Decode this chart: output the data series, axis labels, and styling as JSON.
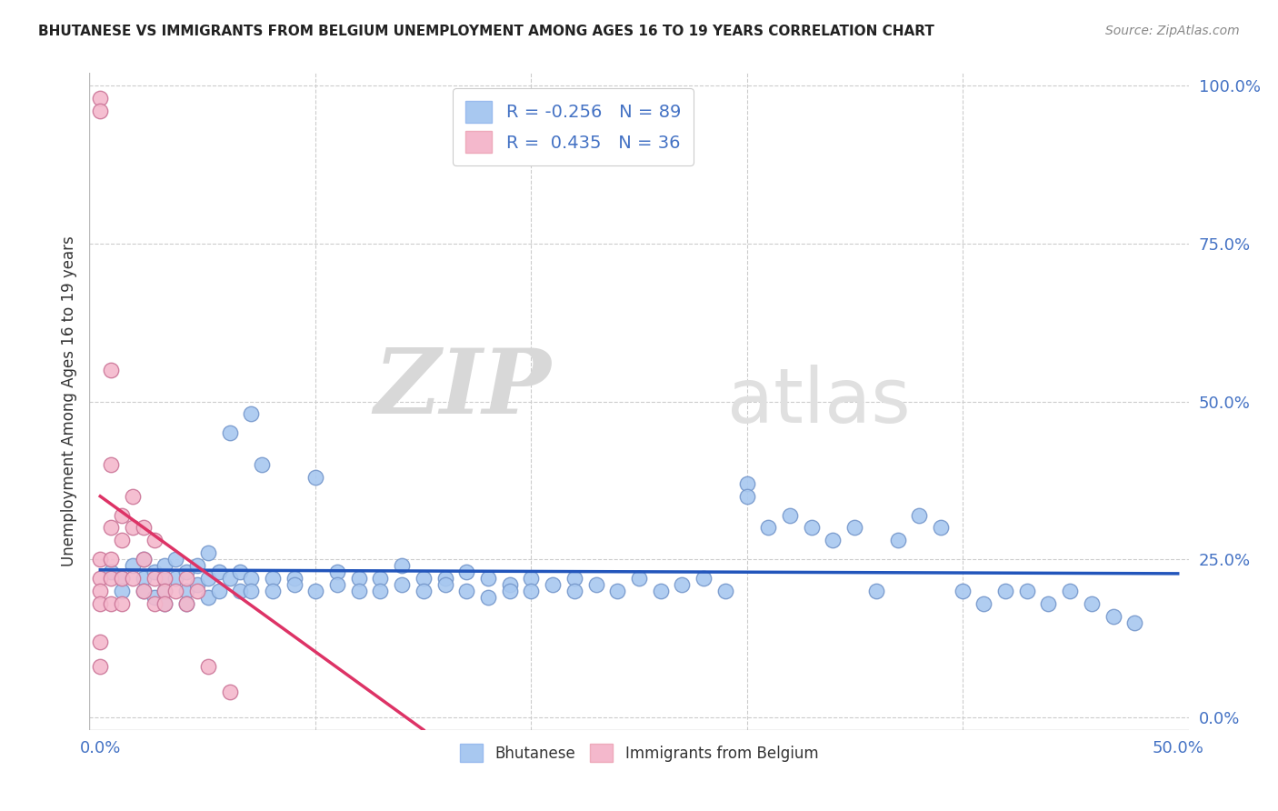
{
  "title": "BHUTANESE VS IMMIGRANTS FROM BELGIUM UNEMPLOYMENT AMONG AGES 16 TO 19 YEARS CORRELATION CHART",
  "source": "Source: ZipAtlas.com",
  "ylabel": "Unemployment Among Ages 16 to 19 years",
  "xlim": [
    -0.005,
    0.505
  ],
  "ylim": [
    -0.02,
    1.02
  ],
  "xticks": [
    0.0,
    0.5
  ],
  "yticks": [
    0.0,
    0.25,
    0.5,
    0.75,
    1.0
  ],
  "xticklabels": [
    "0.0%",
    "50.0%"
  ],
  "yticklabels": [
    "0.0%",
    "25.0%",
    "50.0%",
    "75.0%",
    "100.0%"
  ],
  "blue_color": "#a8c8f0",
  "pink_color": "#f4b8cc",
  "trendline_blue": "#2255bb",
  "trendline_pink": "#dd3366",
  "watermark_zip": "ZIP",
  "watermark_atlas": "atlas",
  "legend_R_blue": "-0.256",
  "legend_N_blue": "89",
  "legend_R_pink": "0.435",
  "legend_N_pink": "36",
  "blue_x": [
    0.005,
    0.01,
    0.01,
    0.015,
    0.02,
    0.02,
    0.02,
    0.025,
    0.025,
    0.03,
    0.03,
    0.03,
    0.03,
    0.035,
    0.035,
    0.04,
    0.04,
    0.04,
    0.045,
    0.045,
    0.05,
    0.05,
    0.05,
    0.055,
    0.055,
    0.06,
    0.06,
    0.065,
    0.065,
    0.07,
    0.07,
    0.07,
    0.075,
    0.08,
    0.08,
    0.09,
    0.09,
    0.1,
    0.1,
    0.11,
    0.11,
    0.12,
    0.12,
    0.13,
    0.13,
    0.14,
    0.14,
    0.15,
    0.15,
    0.16,
    0.16,
    0.17,
    0.17,
    0.18,
    0.18,
    0.19,
    0.19,
    0.2,
    0.2,
    0.21,
    0.22,
    0.22,
    0.23,
    0.24,
    0.25,
    0.26,
    0.27,
    0.28,
    0.29,
    0.3,
    0.3,
    0.31,
    0.32,
    0.33,
    0.34,
    0.35,
    0.36,
    0.37,
    0.38,
    0.39,
    0.4,
    0.41,
    0.42,
    0.43,
    0.44,
    0.45,
    0.46,
    0.47,
    0.48
  ],
  "blue_y": [
    0.23,
    0.22,
    0.2,
    0.24,
    0.22,
    0.2,
    0.25,
    0.23,
    0.19,
    0.22,
    0.24,
    0.2,
    0.18,
    0.25,
    0.22,
    0.23,
    0.2,
    0.18,
    0.24,
    0.21,
    0.22,
    0.19,
    0.26,
    0.23,
    0.2,
    0.45,
    0.22,
    0.23,
    0.2,
    0.48,
    0.22,
    0.2,
    0.4,
    0.22,
    0.2,
    0.22,
    0.21,
    0.38,
    0.2,
    0.23,
    0.21,
    0.22,
    0.2,
    0.22,
    0.2,
    0.24,
    0.21,
    0.22,
    0.2,
    0.22,
    0.21,
    0.23,
    0.2,
    0.22,
    0.19,
    0.21,
    0.2,
    0.22,
    0.2,
    0.21,
    0.22,
    0.2,
    0.21,
    0.2,
    0.22,
    0.2,
    0.21,
    0.22,
    0.2,
    0.37,
    0.35,
    0.3,
    0.32,
    0.3,
    0.28,
    0.3,
    0.2,
    0.28,
    0.32,
    0.3,
    0.2,
    0.18,
    0.2,
    0.2,
    0.18,
    0.2,
    0.18,
    0.16,
    0.15
  ],
  "pink_x": [
    0.0,
    0.0,
    0.0,
    0.0,
    0.0,
    0.0,
    0.0,
    0.0,
    0.005,
    0.005,
    0.005,
    0.005,
    0.005,
    0.005,
    0.01,
    0.01,
    0.01,
    0.01,
    0.015,
    0.015,
    0.015,
    0.02,
    0.02,
    0.02,
    0.025,
    0.025,
    0.025,
    0.03,
    0.03,
    0.03,
    0.035,
    0.04,
    0.04,
    0.045,
    0.05,
    0.06
  ],
  "pink_y": [
    0.98,
    0.96,
    0.25,
    0.22,
    0.2,
    0.18,
    0.12,
    0.08,
    0.55,
    0.4,
    0.3,
    0.25,
    0.22,
    0.18,
    0.32,
    0.28,
    0.22,
    0.18,
    0.35,
    0.3,
    0.22,
    0.3,
    0.25,
    0.2,
    0.28,
    0.22,
    0.18,
    0.22,
    0.2,
    0.18,
    0.2,
    0.22,
    0.18,
    0.2,
    0.08,
    0.04
  ],
  "background_color": "#ffffff",
  "grid_color": "#cccccc",
  "grid_inner_ticks": [
    0.1,
    0.2,
    0.3,
    0.4
  ]
}
